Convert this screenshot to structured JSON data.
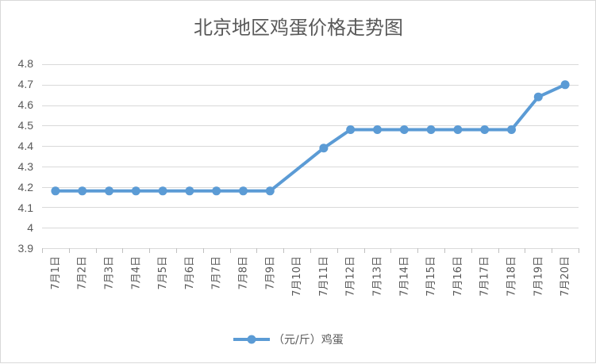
{
  "chart_data": {
    "type": "line",
    "title": "北京地区鸡蛋价格走势图",
    "xlabel": "",
    "ylabel": "",
    "categories": [
      "7月1日",
      "7月2日",
      "7月3日",
      "7月4日",
      "7月5日",
      "7月6日",
      "7月7日",
      "7月8日",
      "7月9日",
      "7月10日",
      "7月11日",
      "7月12日",
      "7月13日",
      "7月14日",
      "7月15日",
      "7月16日",
      "7月17日",
      "7月18日",
      "7月19日",
      "7月20日"
    ],
    "series": [
      {
        "name": "（元/斤）鸡蛋",
        "color": "#5b9bd5",
        "values": [
          4.18,
          4.18,
          4.18,
          4.18,
          4.18,
          4.18,
          4.18,
          4.18,
          4.18,
          null,
          4.39,
          4.48,
          4.48,
          4.48,
          4.48,
          4.48,
          4.48,
          4.48,
          4.64,
          4.7
        ]
      }
    ],
    "ylim": [
      3.9,
      4.8
    ],
    "yticks": [
      "4.8",
      "4.7",
      "4.6",
      "4.5",
      "4.4",
      "4.3",
      "4.2",
      "4.1",
      "4",
      "3.9"
    ],
    "grid": true,
    "legend": "bottom"
  }
}
